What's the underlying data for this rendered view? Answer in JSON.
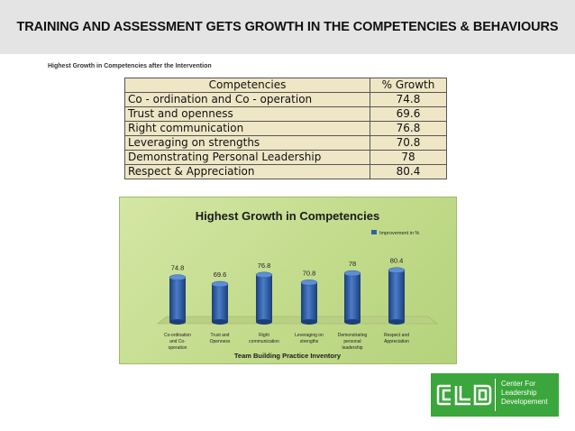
{
  "header": {
    "title": "TRAINING AND ASSESSMENT GETS GROWTH IN THE COMPETENCIES & BEHAVIOURS"
  },
  "table": {
    "caption": "Highest Growth in Competencies after the Intervention",
    "headers": [
      "Competencies",
      "% Growth"
    ],
    "rows": [
      [
        "Co - ordination and Co - operation",
        "74.8"
      ],
      [
        "Trust and openness",
        "69.6"
      ],
      [
        "Right communication",
        "76.8"
      ],
      [
        "Leveraging on strengths",
        "70.8"
      ],
      [
        "Demonstrating Personal Leadership",
        "78"
      ],
      [
        "Respect & Appreciation",
        "80.4"
      ]
    ]
  },
  "chart_data": {
    "type": "bar",
    "title": "Highest Growth in Competencies",
    "xlabel": "Team Building Practice Inventory",
    "ylabel": "",
    "categories": [
      [
        "Co-ordination",
        "and Co-",
        "operation"
      ],
      [
        "Trust and",
        "Openness"
      ],
      [
        "Right",
        "communication"
      ],
      [
        "Leveraging on",
        "strengths"
      ],
      [
        "Demonstrating",
        "personal",
        "leadership"
      ],
      [
        "Respect and",
        "Appreciation"
      ]
    ],
    "series": [
      {
        "name": "Improvement in %",
        "values": [
          74.8,
          69.6,
          76.8,
          70.8,
          78,
          80.4
        ]
      }
    ],
    "data_labels": [
      "74.8",
      "69.6",
      "76.8",
      "70.8",
      "78",
      "80.4"
    ],
    "legend": "top-right",
    "bar_color": "#2f5fa8",
    "background_color": "#c6dd90",
    "grid": false
  },
  "logo": {
    "mark": "CLD",
    "lines": [
      "Center For",
      "Leadership",
      "Developement"
    ],
    "color": "#3ba63b"
  }
}
